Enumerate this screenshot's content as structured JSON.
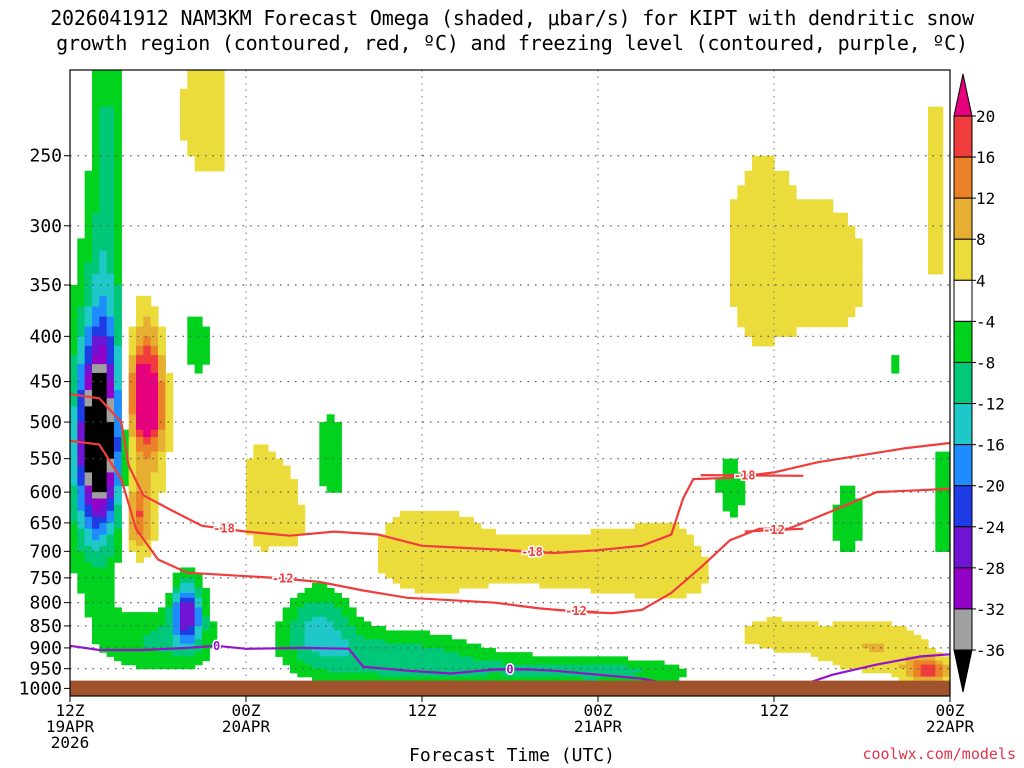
{
  "title": {
    "line1": "2026041912 NAM3KM Forecast Omega (shaded, μbar/s) for KIPT with dendritic snow",
    "line2": "growth region (contoured, red, ºC) and freezing level (contoured, purple, ºC)"
  },
  "credit": "coolwx.com/models",
  "chart_data": {
    "type": "time-height cross section",
    "xlabel": "Forecast Time (UTC)",
    "ylabel": "",
    "x_ticks": [
      {
        "hour": 0,
        "line1": "12Z",
        "line2": "19APR",
        "line3": "2026"
      },
      {
        "hour": 12,
        "line1": "00Z",
        "line2": "20APR",
        "line3": ""
      },
      {
        "hour": 24,
        "line1": "12Z",
        "line2": "",
        "line3": ""
      },
      {
        "hour": 36,
        "line1": "00Z",
        "line2": "21APR",
        "line3": ""
      },
      {
        "hour": 48,
        "line1": "12Z",
        "line2": "",
        "line3": ""
      },
      {
        "hour": 60,
        "line1": "00Z",
        "line2": "22APR",
        "line3": ""
      }
    ],
    "xlim": [
      0,
      60
    ],
    "y_ticks": [
      250,
      300,
      350,
      400,
      450,
      500,
      550,
      600,
      650,
      700,
      750,
      800,
      850,
      900,
      950,
      1000
    ],
    "ylim_hPa": [
      200,
      1020
    ],
    "surface_pressure_hPa": 980,
    "colorbar": {
      "levels": [
        -36,
        -32,
        -28,
        -24,
        -20,
        -16,
        -12,
        -8,
        -4,
        4,
        8,
        12,
        16,
        20
      ],
      "label_levels": [
        "20",
        "16",
        "12",
        "8",
        "4",
        "-4",
        "-8",
        "-12",
        "-16",
        "-20",
        "-24",
        "-28",
        "-32",
        "-36"
      ],
      "bins": [
        {
          "from": -99,
          "to": -36,
          "color": "#000000"
        },
        {
          "from": -36,
          "to": -32,
          "color": "#a0a0a0"
        },
        {
          "from": -32,
          "to": -28,
          "color": "#9300c8"
        },
        {
          "from": -28,
          "to": -24,
          "color": "#6e14d2"
        },
        {
          "from": -24,
          "to": -20,
          "color": "#1e3ce6"
        },
        {
          "from": -20,
          "to": -16,
          "color": "#1e8cff"
        },
        {
          "from": -16,
          "to": -12,
          "color": "#1ec8c8"
        },
        {
          "from": -12,
          "to": -8,
          "color": "#00c878"
        },
        {
          "from": -8,
          "to": -4,
          "color": "#00d21e"
        },
        {
          "from": -4,
          "to": 4,
          "color": "#ffffff"
        },
        {
          "from": 4,
          "to": 8,
          "color": "#ebdc3c"
        },
        {
          "from": 8,
          "to": 12,
          "color": "#e6af32"
        },
        {
          "from": 12,
          "to": 16,
          "color": "#eb8228"
        },
        {
          "from": 16,
          "to": 20,
          "color": "#f03c3c"
        },
        {
          "from": 20,
          "to": 99,
          "color": "#e6007d"
        }
      ]
    },
    "omega_blobs": [
      {
        "t": 2.0,
        "p": 520,
        "rt": 1.3,
        "rp": 120,
        "v": -40
      },
      {
        "t": 1.8,
        "p": 560,
        "rt": 2.2,
        "rp": 220,
        "v": -12
      },
      {
        "t": 2.6,
        "p": 250,
        "rt": 1.2,
        "rp": 200,
        "v": -8
      },
      {
        "t": 5.2,
        "p": 470,
        "rt": 1.2,
        "rp": 70,
        "v": 26
      },
      {
        "t": 5.0,
        "p": 520,
        "rt": 2.2,
        "rp": 230,
        "v": 6
      },
      {
        "t": 4.6,
        "p": 640,
        "rt": 0.8,
        "rp": 60,
        "v": 14
      },
      {
        "t": 8.0,
        "p": 820,
        "rt": 1.0,
        "rp": 70,
        "v": -24
      },
      {
        "t": 6.0,
        "p": 880,
        "rt": 4.0,
        "rp": 80,
        "v": -9
      },
      {
        "t": 8.3,
        "p": 380,
        "rt": 2.8,
        "rp": 120,
        "v": -6
      },
      {
        "t": 9.0,
        "p": 250,
        "rt": 3.5,
        "rp": 110,
        "v": 6
      },
      {
        "t": 13.0,
        "p": 610,
        "rt": 1.6,
        "rp": 110,
        "v": 7
      },
      {
        "t": 15.5,
        "p": 620,
        "rt": 1.4,
        "rp": 110,
        "v": 6
      },
      {
        "t": 17.5,
        "p": 560,
        "rt": 2.2,
        "rp": 110,
        "v": -6
      },
      {
        "t": 17.0,
        "p": 850,
        "rt": 2.5,
        "rp": 90,
        "v": -12
      },
      {
        "t": 22.0,
        "p": 920,
        "rt": 6.0,
        "rp": 70,
        "v": -10
      },
      {
        "t": 30.0,
        "p": 950,
        "rt": 8.0,
        "rp": 40,
        "v": -6
      },
      {
        "t": 37.0,
        "p": 960,
        "rt": 6.0,
        "rp": 35,
        "v": -7
      },
      {
        "t": 24.0,
        "p": 700,
        "rt": 5.0,
        "rp": 110,
        "v": 6
      },
      {
        "t": 34.0,
        "p": 720,
        "rt": 7.0,
        "rp": 90,
        "v": 5
      },
      {
        "t": 42.0,
        "p": 720,
        "rt": 5.0,
        "rp": 100,
        "v": 5
      },
      {
        "t": 45.0,
        "p": 620,
        "rt": 2.0,
        "rp": 120,
        "v": -6
      },
      {
        "t": 47.0,
        "p": 330,
        "rt": 3.5,
        "rp": 120,
        "v": 6
      },
      {
        "t": 52.5,
        "p": 340,
        "rt": 3.0,
        "rp": 90,
        "v": 5
      },
      {
        "t": 48.0,
        "p": 870,
        "rt": 4.0,
        "rp": 60,
        "v": 5
      },
      {
        "t": 55.0,
        "p": 900,
        "rt": 4.0,
        "rp": 70,
        "v": 8
      },
      {
        "t": 58.5,
        "p": 955,
        "rt": 1.5,
        "rp": 30,
        "v": 17
      },
      {
        "t": 53.0,
        "p": 650,
        "rt": 1.5,
        "rp": 90,
        "v": -6
      },
      {
        "t": 59.5,
        "p": 620,
        "rt": 1.0,
        "rp": 120,
        "v": -7
      },
      {
        "t": 59.0,
        "p": 280,
        "rt": 1.0,
        "rp": 150,
        "v": 5
      },
      {
        "t": 56.0,
        "p": 430,
        "rt": 0.8,
        "rp": 60,
        "v": -5
      }
    ],
    "contours": [
      {
        "value": -18,
        "color": "#f03c3c",
        "label": "-18",
        "label_at": 10.5,
        "points": [
          [
            0,
            465
          ],
          [
            2,
            470
          ],
          [
            3.5,
            500
          ],
          [
            4,
            560
          ],
          [
            5,
            605
          ],
          [
            7,
            630
          ],
          [
            9,
            655
          ],
          [
            12,
            665
          ],
          [
            15,
            672
          ],
          [
            18,
            665
          ],
          [
            21,
            670
          ],
          [
            24,
            690
          ],
          [
            27,
            694
          ],
          [
            30,
            698
          ],
          [
            33,
            703
          ],
          [
            36,
            698
          ],
          [
            39,
            690
          ],
          [
            41,
            670
          ],
          [
            41.8,
            610
          ],
          [
            42.5,
            580
          ],
          [
            45,
            578
          ],
          [
            48,
            570
          ],
          [
            51,
            555
          ],
          [
            54,
            545
          ],
          [
            57,
            535
          ],
          [
            60,
            528
          ]
        ]
      },
      {
        "value": -18,
        "color": "#f03c3c",
        "label": "-18",
        "label_at": 46,
        "points": [
          [
            43,
            574
          ],
          [
            50,
            575
          ]
        ]
      },
      {
        "value": -18,
        "color": "#f03c3c",
        "label": "-18",
        "label_at": 31.5,
        "points": [
          [
            30,
            699
          ],
          [
            33,
            703
          ]
        ]
      },
      {
        "value": -12,
        "color": "#f03c3c",
        "label": "-12",
        "label_at": 14.5,
        "points": [
          [
            0,
            525
          ],
          [
            2,
            530
          ],
          [
            3.5,
            580
          ],
          [
            4.5,
            660
          ],
          [
            6,
            715
          ],
          [
            8,
            740
          ],
          [
            11,
            745
          ],
          [
            14,
            750
          ],
          [
            17,
            758
          ],
          [
            20,
            775
          ],
          [
            23,
            790
          ],
          [
            26,
            795
          ],
          [
            29,
            800
          ],
          [
            32,
            812
          ],
          [
            35,
            820
          ],
          [
            37,
            822
          ],
          [
            39,
            815
          ],
          [
            41,
            780
          ],
          [
            43,
            730
          ],
          [
            45,
            680
          ],
          [
            47,
            660
          ],
          [
            49,
            660
          ],
          [
            51,
            640
          ],
          [
            53,
            620
          ],
          [
            55,
            600
          ],
          [
            57,
            598
          ],
          [
            60,
            595
          ]
        ]
      },
      {
        "value": -12,
        "color": "#f03c3c",
        "label": "-12",
        "label_at": 34.5,
        "points": [
          [
            33,
            815
          ],
          [
            36,
            820
          ]
        ]
      },
      {
        "value": -12,
        "color": "#f03c3c",
        "label": "-12",
        "label_at": 48,
        "points": [
          [
            46,
            665
          ],
          [
            50,
            660
          ]
        ]
      },
      {
        "value": 0,
        "color": "#9314c8",
        "label": "0",
        "label_at": 10,
        "points": [
          [
            0,
            895
          ],
          [
            2,
            905
          ],
          [
            5,
            905
          ],
          [
            8,
            900
          ],
          [
            10,
            895
          ],
          [
            12,
            902
          ],
          [
            16,
            900
          ],
          [
            19,
            902
          ],
          [
            20,
            945
          ],
          [
            23,
            955
          ],
          [
            26,
            962
          ],
          [
            28,
            955
          ],
          [
            30,
            950
          ],
          [
            33,
            955
          ],
          [
            36,
            965
          ],
          [
            39,
            975
          ],
          [
            41,
            990
          ],
          [
            45,
            990
          ],
          [
            47,
            985
          ],
          [
            50,
            990
          ],
          [
            52,
            965
          ],
          [
            55,
            940
          ],
          [
            58,
            920
          ],
          [
            60,
            915
          ]
        ]
      },
      {
        "value": 0,
        "color": "#9314c8",
        "label": "0",
        "label_at": 30,
        "points": [
          [
            28.5,
            952
          ],
          [
            31.5,
            952
          ]
        ]
      }
    ]
  }
}
